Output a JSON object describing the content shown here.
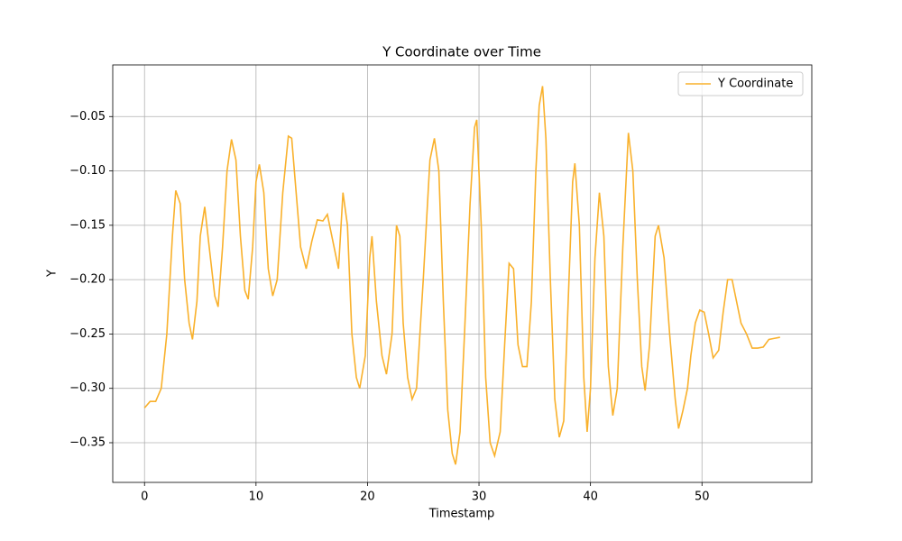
{
  "chart_data": {
    "type": "line",
    "title": "Y Coordinate over Time",
    "x_label": "Timestamp",
    "y_label": "Y",
    "x": [
      0,
      0.5,
      1,
      1.5,
      2,
      2.5,
      2.8,
      3.2,
      3.6,
      4.0,
      4.3,
      4.7,
      5.0,
      5.4,
      5.8,
      6.3,
      6.6,
      7.0,
      7.4,
      7.8,
      8.2,
      8.6,
      9.0,
      9.3,
      9.7,
      10.0,
      10.3,
      10.7,
      11.1,
      11.5,
      11.9,
      12.4,
      12.9,
      13.2,
      13.6,
      14.0,
      14.5,
      15.0,
      15.5,
      16.0,
      16.4,
      17.0,
      17.4,
      17.8,
      18.2,
      18.6,
      19.0,
      19.3,
      19.8,
      20.2,
      20.4,
      20.8,
      21.3,
      21.7,
      22.2,
      22.6,
      22.9,
      23.2,
      23.6,
      24.0,
      24.4,
      25.0,
      25.6,
      26.0,
      26.4,
      26.8,
      27.2,
      27.6,
      27.9,
      28.3,
      28.7,
      29.2,
      29.6,
      29.8,
      30.2,
      30.6,
      31.0,
      31.4,
      31.9,
      32.3,
      32.7,
      33.1,
      33.5,
      33.9,
      34.3,
      34.7,
      35.1,
      35.4,
      35.7,
      36.0,
      36.4,
      36.8,
      37.2,
      37.6,
      38.0,
      38.4,
      38.6,
      39.0,
      39.4,
      39.7,
      40.0,
      40.4,
      40.8,
      41.2,
      41.6,
      42.0,
      42.4,
      42.9,
      43.4,
      43.8,
      44.2,
      44.6,
      44.9,
      45.3,
      45.8,
      46.1,
      46.6,
      47.1,
      47.6,
      47.9,
      48.3,
      48.7,
      49.0,
      49.4,
      49.8,
      50.2,
      50.6,
      51.0,
      51.5,
      51.9,
      52.3,
      52.7,
      53.1,
      53.5,
      54.0,
      54.5,
      55.0,
      55.5,
      56.0,
      56.5,
      57.0
    ],
    "series": [
      {
        "name": "Y Coordinate",
        "color": "#f9b12c",
        "values": [
          -0.318,
          -0.312,
          -0.312,
          -0.3,
          -0.25,
          -0.16,
          -0.118,
          -0.13,
          -0.2,
          -0.24,
          -0.255,
          -0.22,
          -0.16,
          -0.133,
          -0.17,
          -0.215,
          -0.225,
          -0.17,
          -0.1,
          -0.071,
          -0.09,
          -0.16,
          -0.21,
          -0.218,
          -0.17,
          -0.11,
          -0.094,
          -0.12,
          -0.19,
          -0.215,
          -0.2,
          -0.12,
          -0.068,
          -0.07,
          -0.12,
          -0.17,
          -0.19,
          -0.165,
          -0.145,
          -0.146,
          -0.14,
          -0.17,
          -0.19,
          -0.12,
          -0.15,
          -0.25,
          -0.29,
          -0.3,
          -0.27,
          -0.18,
          -0.16,
          -0.22,
          -0.27,
          -0.287,
          -0.25,
          -0.15,
          -0.16,
          -0.24,
          -0.29,
          -0.31,
          -0.3,
          -0.2,
          -0.09,
          -0.07,
          -0.1,
          -0.22,
          -0.32,
          -0.36,
          -0.37,
          -0.34,
          -0.25,
          -0.13,
          -0.06,
          -0.053,
          -0.15,
          -0.29,
          -0.35,
          -0.362,
          -0.34,
          -0.26,
          -0.185,
          -0.19,
          -0.26,
          -0.28,
          -0.28,
          -0.22,
          -0.1,
          -0.04,
          -0.022,
          -0.07,
          -0.2,
          -0.31,
          -0.345,
          -0.33,
          -0.22,
          -0.11,
          -0.093,
          -0.15,
          -0.29,
          -0.34,
          -0.3,
          -0.18,
          -0.12,
          -0.16,
          -0.28,
          -0.325,
          -0.3,
          -0.17,
          -0.065,
          -0.1,
          -0.2,
          -0.28,
          -0.302,
          -0.26,
          -0.16,
          -0.15,
          -0.18,
          -0.25,
          -0.31,
          -0.337,
          -0.32,
          -0.3,
          -0.27,
          -0.24,
          -0.228,
          -0.23,
          -0.25,
          -0.272,
          -0.265,
          -0.23,
          -0.2,
          -0.2,
          -0.22,
          -0.24,
          -0.25,
          -0.263,
          -0.263,
          -0.262,
          -0.255,
          -0.254,
          -0.253
        ]
      }
    ],
    "xlim": [
      -2.85,
      59.85
    ],
    "ylim": [
      -0.3865,
      -0.0025
    ],
    "xticks": [
      0,
      10,
      20,
      30,
      40,
      50
    ],
    "yticks": [
      {
        "value": -0.35,
        "label": "−0.35"
      },
      {
        "value": -0.3,
        "label": "−0.30"
      },
      {
        "value": -0.25,
        "label": "−0.25"
      },
      {
        "value": -0.2,
        "label": "−0.20"
      },
      {
        "value": -0.15,
        "label": "−0.15"
      },
      {
        "value": -0.1,
        "label": "−0.10"
      },
      {
        "value": -0.05,
        "label": "−0.05"
      }
    ],
    "grid": true,
    "legend": "upper right"
  }
}
